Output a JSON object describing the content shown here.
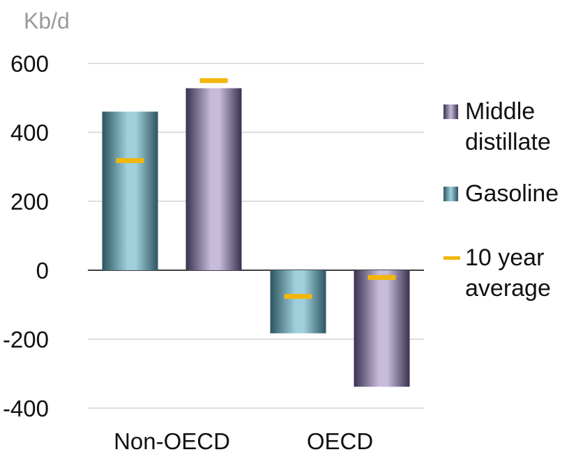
{
  "chart_data": {
    "type": "bar",
    "unit_label": "Kb/d",
    "categories": [
      "Non-OECD",
      "OECD"
    ],
    "series": [
      {
        "name": "Gasoline",
        "values": [
          460,
          -183
        ],
        "color": "#9fd0dc",
        "edge_color": "#2c5560"
      },
      {
        "name": "Middle distillate",
        "values": [
          528,
          -338
        ],
        "color": "#c6bbda",
        "edge_color": "#3a3150"
      }
    ],
    "average": {
      "name": "10 year average",
      "values": [
        [
          318,
          550
        ],
        [
          -76,
          -21
        ]
      ],
      "color": "#f2b70d"
    },
    "ylim": [
      -400,
      600
    ],
    "yticks": [
      "600",
      "400",
      "200",
      "0",
      "-200",
      "-400"
    ],
    "grid": true,
    "legend_position": "right",
    "legend": [
      {
        "label": "Middle\ndistillate",
        "kind": "swatch",
        "series": 1
      },
      {
        "label": "Gasoline",
        "kind": "swatch",
        "series": 0
      },
      {
        "label": "10 year\naverage",
        "kind": "dash"
      }
    ]
  }
}
